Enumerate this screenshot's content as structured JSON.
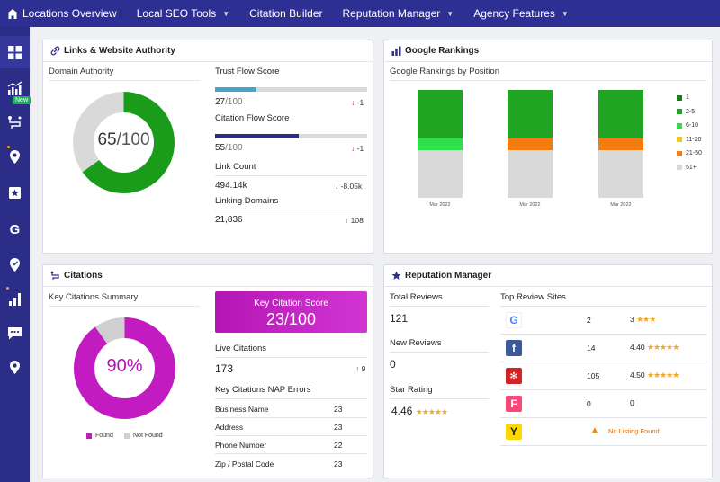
{
  "nav": {
    "items": [
      {
        "label": "Locations Overview",
        "caret": false
      },
      {
        "label": "Local SEO Tools",
        "caret": true
      },
      {
        "label": "Citation Builder",
        "caret": false
      },
      {
        "label": "Reputation Manager",
        "caret": true
      },
      {
        "label": "Agency Features",
        "caret": true
      }
    ]
  },
  "sidebar": {
    "new_badge": "New",
    "icons": [
      "grid-icon",
      "rankings-icon",
      "route-icon",
      "map-pin-icon",
      "star-flag-icon",
      "google-icon",
      "location-icon",
      "bar-chart-icon",
      "chat-icon",
      "marker-icon"
    ]
  },
  "links": {
    "title": "Links & Website Authority",
    "domain_authority": {
      "label": "Domain Authority",
      "value": "65",
      "denominator": "/100",
      "percent": 65,
      "color": "#1a9b1a"
    },
    "trust_flow": {
      "label": "Trust Flow Score",
      "value": "27",
      "denominator": "/100",
      "delta": "-1",
      "percent": 27,
      "color": "#4aa3c8"
    },
    "citation_flow": {
      "label": "Citation Flow Score",
      "value": "55",
      "denominator": "/100",
      "delta": "-1",
      "percent": 55,
      "color": "#2b2d86"
    },
    "link_count": {
      "label": "Link Count",
      "value": "494.14k",
      "delta": "-8.05k"
    },
    "linking_domains": {
      "label": "Linking Domains",
      "value": "21,836",
      "delta": "108"
    }
  },
  "rankings": {
    "title": "Google Rankings",
    "subtitle": "Google Rankings by Position"
  },
  "chart_data": {
    "type": "bar",
    "stacked": true,
    "categories": [
      "Mar 2022",
      "Mar 2022",
      "Mar 2022"
    ],
    "ylim": [
      0,
      100
    ],
    "grid": false,
    "legend": "right",
    "series": [
      {
        "name": "1",
        "color": "#177e17",
        "values": [
          0,
          0,
          0
        ]
      },
      {
        "name": "2-5",
        "color": "#1fa521",
        "values": [
          45,
          45,
          45
        ]
      },
      {
        "name": "6-10",
        "color": "#2fe04a",
        "values": [
          11,
          0,
          0
        ]
      },
      {
        "name": "11-20",
        "color": "#f5c518",
        "values": [
          0,
          0,
          0
        ]
      },
      {
        "name": "21-50",
        "color": "#f47b0f",
        "values": [
          0,
          11,
          11
        ]
      },
      {
        "name": "51+",
        "color": "#d9d9d9",
        "values": [
          44,
          44,
          44
        ]
      }
    ]
  },
  "citations": {
    "title": "Citations",
    "summary_label": "Key Citations Summary",
    "percent_label": "90%",
    "found_percent": 90,
    "found_color": "#c21bc2",
    "notfound_color": "#cfcfcf",
    "legend_found": "Found",
    "legend_notfound": "Not Found",
    "score_label": "Key Citation Score",
    "score_value": "23/100",
    "live_label": "Live Citations",
    "live_value": "173",
    "live_delta": "9",
    "nap_label": "Key Citations NAP Errors",
    "nap_rows": [
      {
        "label": "Business Name",
        "value": "23"
      },
      {
        "label": "Address",
        "value": "23"
      },
      {
        "label": "Phone Number",
        "value": "22"
      },
      {
        "label": "Zip / Postal Code",
        "value": "23"
      }
    ]
  },
  "reputation": {
    "title": "Reputation Manager",
    "total_label": "Total Reviews",
    "total_value": "121",
    "new_label": "New Reviews",
    "new_value": "0",
    "star_label": "Star Rating",
    "star_value": "4.46",
    "star_glyphs": "★★★★★",
    "sites_label": "Top Review Sites",
    "sites": [
      {
        "icon": "google-logo-icon",
        "logo_text": "G",
        "count": "2",
        "rating": "3",
        "stars": "★★★"
      },
      {
        "icon": "facebook-logo-icon",
        "logo_text": "f",
        "count": "14",
        "rating": "4.40",
        "stars": "★★★★★"
      },
      {
        "icon": "yelp-logo-icon",
        "logo_text": "✻",
        "count": "105",
        "rating": "4.50",
        "stars": "★★★★★"
      },
      {
        "icon": "foursquare-logo-icon",
        "logo_text": "F",
        "count": "0",
        "rating": "0",
        "stars": ""
      },
      {
        "icon": "yellowpages-logo-icon",
        "logo_text": "Y",
        "count": "",
        "rating": "No Listing Found",
        "stars": ""
      }
    ]
  }
}
